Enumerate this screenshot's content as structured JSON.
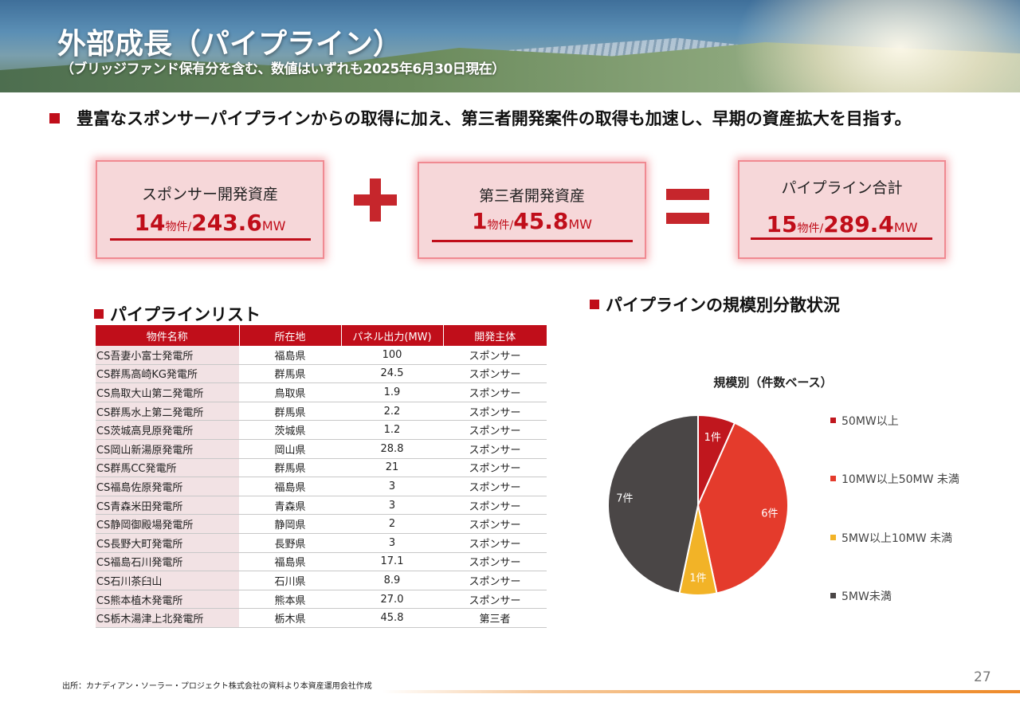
{
  "header": {
    "title": "外部成長（パイプライン）",
    "subtitle": "（ブリッジファンド保有分を含む、数値はいずれも2025年6月30日現在）"
  },
  "lead": "豊富なスポンサーパイプラインからの取得に加え、第三者開発案件の取得も加速し、早期の資産拡大を目指す。",
  "summary": {
    "sponsor": {
      "label": "スポンサー開発資産",
      "count": "14",
      "count_unit": "物件/",
      "mw": "243.6",
      "mw_unit": "MW"
    },
    "third": {
      "label": "第三者開発資産",
      "count": "1",
      "count_unit": "物件/",
      "mw": "45.8",
      "mw_unit": "MW"
    },
    "total": {
      "label": "パイプライン合計",
      "count": "15",
      "count_unit": "物件/",
      "mw": "289.4",
      "mw_unit": "MW"
    }
  },
  "pipeline_list": {
    "heading": "パイプラインリスト",
    "columns": [
      "物件名称",
      "所在地",
      "パネル出力(MW)",
      "開発主体"
    ],
    "rows": [
      [
        "CS吾妻小富士発電所",
        "福島県",
        "100",
        "スポンサー"
      ],
      [
        "CS群馬高崎KG発電所",
        "群馬県",
        "24.5",
        "スポンサー"
      ],
      [
        "CS鳥取大山第二発電所",
        "鳥取県",
        "1.9",
        "スポンサー"
      ],
      [
        "CS群馬水上第二発電所",
        "群馬県",
        "2.2",
        "スポンサー"
      ],
      [
        "CS茨城高見原発電所",
        "茨城県",
        "1.2",
        "スポンサー"
      ],
      [
        "CS岡山新湯原発電所",
        "岡山県",
        "28.8",
        "スポンサー"
      ],
      [
        "CS群馬CC発電所",
        "群馬県",
        "21",
        "スポンサー"
      ],
      [
        "CS福島佐原発電所",
        "福島県",
        "3",
        "スポンサー"
      ],
      [
        "CS青森米田発電所",
        "青森県",
        "3",
        "スポンサー"
      ],
      [
        "CS静岡御殿場発電所",
        "静岡県",
        "2",
        "スポンサー"
      ],
      [
        "CS長野大町発電所",
        "長野県",
        "3",
        "スポンサー"
      ],
      [
        "CS福島石川発電所",
        "福島県",
        "17.1",
        "スポンサー"
      ],
      [
        "CS石川茶臼山",
        "石川県",
        "8.9",
        "スポンサー"
      ],
      [
        "CS熊本植木発電所",
        "熊本県",
        "27.0",
        "スポンサー"
      ],
      [
        "CS栃木湯津上北発電所",
        "栃木県",
        "45.8",
        "第三者"
      ]
    ]
  },
  "distribution": {
    "heading": "パイプラインの規模別分散状況"
  },
  "chart_data": {
    "type": "pie",
    "title": "規模別（件数ベース）",
    "categories": [
      "50MW以上",
      "10MW以上50MW 未満",
      "5MW以上10MW 未満",
      "5MW未満"
    ],
    "values": [
      1,
      6,
      1,
      7
    ],
    "data_labels": [
      "1件",
      "6件",
      "1件",
      "7件"
    ],
    "colors": [
      "#c0171e",
      "#e43b2c",
      "#f2b327",
      "#4a4646"
    ],
    "legend": "right"
  },
  "footer": {
    "source": "出所：カナディアン・ソーラー・プロジェクト株式会社の資料より本資産運用会社作成",
    "page": "27"
  }
}
